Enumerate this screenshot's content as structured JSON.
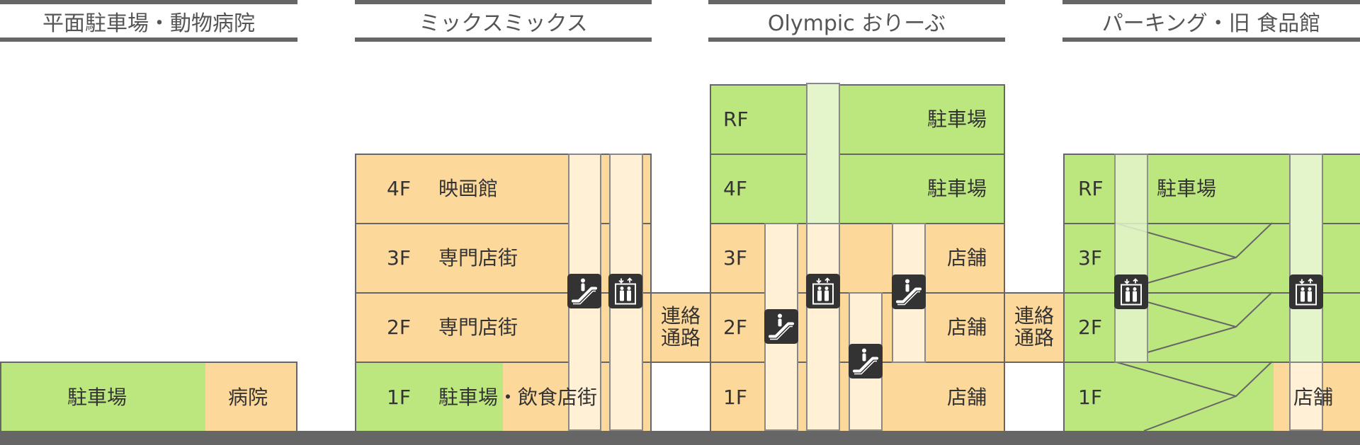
{
  "headers": [
    "平面駐車場・動物病院",
    "ミックスミックス",
    "Olympic おりーぶ",
    "パーキング・旧 食品館"
  ],
  "flat_lot": {
    "parking": "駐車場",
    "hospital": "病院"
  },
  "mixmix": {
    "floors": [
      {
        "floor": "4F",
        "name": "映画館"
      },
      {
        "floor": "3F",
        "name": "専門店街"
      },
      {
        "floor": "2F",
        "name": "専門店街"
      },
      {
        "floor": "1F",
        "name": "駐車場・飲食店街"
      }
    ]
  },
  "connector": {
    "line1": "連絡",
    "line2": "通路"
  },
  "olympic": {
    "floors": [
      {
        "floor": "RF",
        "name": "駐車場"
      },
      {
        "floor": "4F",
        "name": "駐車場"
      },
      {
        "floor": "3F",
        "name": "店舗"
      },
      {
        "floor": "2F",
        "name": "店舗"
      },
      {
        "floor": "1F",
        "name": "店舗"
      }
    ]
  },
  "parking": {
    "floors": [
      {
        "floor": "RF",
        "name": "駐車場"
      },
      {
        "floor": "3F",
        "name": ""
      },
      {
        "floor": "2F",
        "name": ""
      },
      {
        "floor": "1F",
        "name": "店舗"
      }
    ]
  },
  "colors": {
    "shop": "#fdd89b",
    "parking": "#bce67e",
    "shaft_shop": "#fff0d6",
    "shaft_parking": "#e4f5cb",
    "ground": "#666666",
    "icon": "#333333"
  },
  "icons": {
    "escalator": "escalator-icon",
    "elevator": "elevator-icon"
  }
}
